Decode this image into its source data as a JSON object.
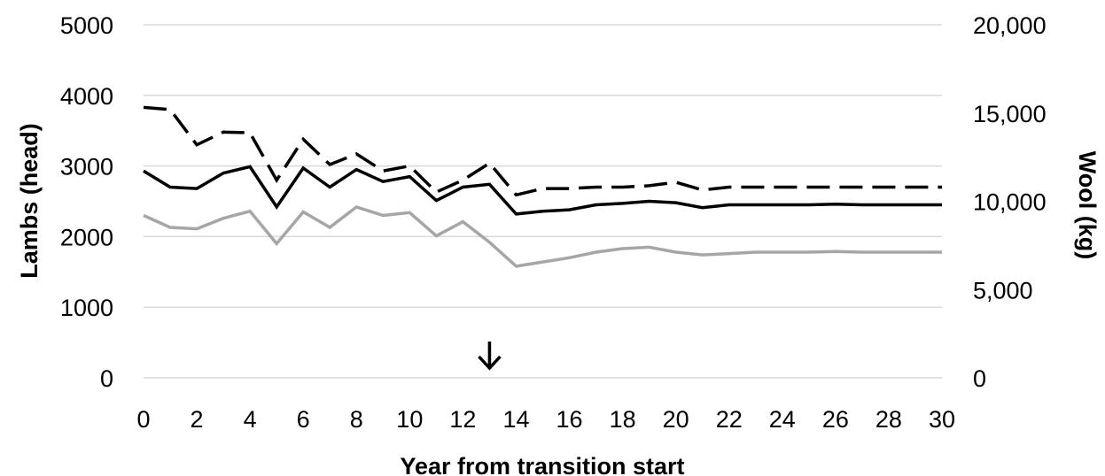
{
  "chart_data": {
    "type": "line",
    "xlabel": "Year from transition start",
    "ylabel_left": "Lambs (head)",
    "ylabel_right": "Wool (kg)",
    "x": [
      0,
      1,
      2,
      3,
      4,
      5,
      6,
      7,
      8,
      9,
      10,
      11,
      12,
      13,
      14,
      15,
      16,
      17,
      18,
      19,
      20,
      21,
      22,
      23,
      24,
      25,
      26,
      27,
      28,
      29,
      30
    ],
    "xticks": [
      "0",
      "2",
      "4",
      "6",
      "8",
      "10",
      "12",
      "14",
      "16",
      "18",
      "20",
      "22",
      "24",
      "26",
      "28",
      "30"
    ],
    "xlim": [
      0,
      30
    ],
    "ylim_left": [
      0,
      5000
    ],
    "yticks_left": [
      "0",
      "1000",
      "2000",
      "3000",
      "4000",
      "5000"
    ],
    "ylim_right": [
      0,
      20000
    ],
    "yticks_right": [
      "0",
      "5,000",
      "10,000",
      "15,000",
      "20,000"
    ],
    "grid": true,
    "series": [
      {
        "axis": "left",
        "color": "#000000",
        "style": "dashed",
        "values": [
          3830,
          3800,
          3300,
          3480,
          3470,
          2800,
          3380,
          3020,
          3170,
          2930,
          3000,
          2630,
          2800,
          3040,
          2590,
          2680,
          2680,
          2700,
          2700,
          2720,
          2770,
          2660,
          2700,
          2700,
          2700,
          2700,
          2700,
          2700,
          2700,
          2700,
          2700
        ]
      },
      {
        "axis": "left",
        "color": "#000000",
        "style": "solid",
        "values": [
          2930,
          2700,
          2680,
          2900,
          2990,
          2420,
          2970,
          2700,
          2950,
          2780,
          2850,
          2510,
          2700,
          2740,
          2320,
          2360,
          2380,
          2450,
          2470,
          2500,
          2480,
          2410,
          2450,
          2450,
          2450,
          2450,
          2460,
          2450,
          2450,
          2450,
          2450
        ]
      },
      {
        "axis": "left",
        "color": "#a6a6a6",
        "style": "solid",
        "values": [
          2300,
          2130,
          2110,
          2260,
          2360,
          1900,
          2350,
          2130,
          2420,
          2300,
          2340,
          2010,
          2210,
          1920,
          1580,
          1640,
          1700,
          1780,
          1830,
          1850,
          1780,
          1740,
          1760,
          1780,
          1780,
          1780,
          1790,
          1780,
          1780,
          1780,
          1780
        ]
      }
    ],
    "annotations": [
      {
        "type": "arrow-down",
        "x": 13,
        "text": "↓"
      }
    ]
  }
}
